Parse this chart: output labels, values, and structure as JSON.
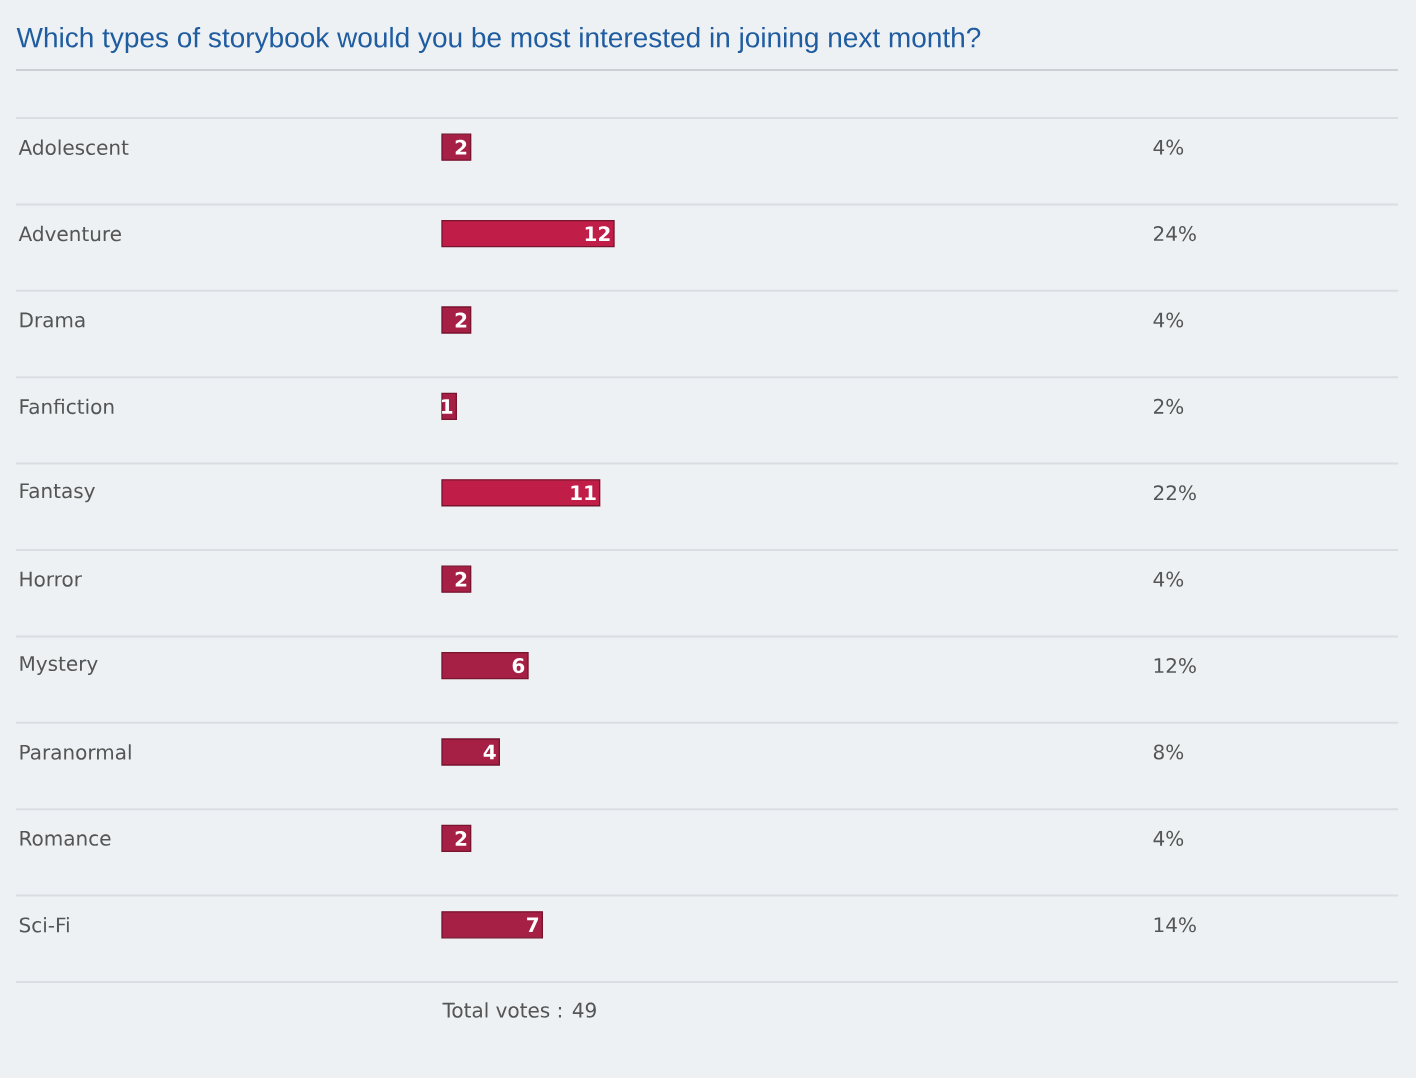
{
  "chart_data": {
    "type": "bar",
    "orientation": "horizontal",
    "title": "Which types of storybook would you be most interested in joining next month?",
    "categories": [
      "Adolescent",
      "Adventure",
      "Drama",
      "Fanfiction",
      "Fantasy",
      "Horror",
      "Mystery",
      "Paranormal",
      "Romance",
      "Sci-Fi"
    ],
    "values": [
      2,
      12,
      2,
      1,
      11,
      2,
      6,
      4,
      2,
      7
    ],
    "colors": [
      "#a61f44",
      "#c01e48",
      "#a61f44",
      "#a61f44",
      "#c01e48",
      "#a61f44",
      "#a61f44",
      "#a61f44",
      "#a61f44",
      "#a61f44"
    ],
    "data_labels": true,
    "annotations": [
      "4%",
      "24%",
      "4%",
      "2%",
      "22%",
      "4%",
      "12%",
      "8%",
      "4%",
      "14%",
      "Total votes : 49"
    ]
  }
}
